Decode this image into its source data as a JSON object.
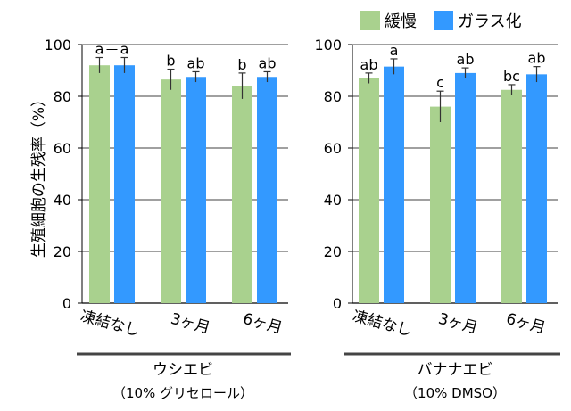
{
  "chart_data": {
    "type": "bar",
    "ylabel": "生殖細胞の生残率（%）",
    "ylim": [
      0,
      100
    ],
    "yticks": [
      0,
      20,
      40,
      60,
      80,
      100
    ],
    "grid": true,
    "legend": {
      "placement": "top-right",
      "entries": [
        {
          "name": "緩慢",
          "color": "#a9d18e"
        },
        {
          "name": "ガラス化",
          "color": "#3399ff"
        }
      ]
    },
    "categories": [
      "凍結なし",
      "3ヶ月",
      "6ヶ月"
    ],
    "panels": [
      {
        "label": "ウシエビ",
        "sublabel": "（10% グリセロール）",
        "series": [
          {
            "name": "緩慢",
            "values": [
              92,
              86.5,
              84
            ],
            "errors": [
              3,
              4,
              5
            ],
            "letters": [
              "a",
              "b",
              "b"
            ]
          },
          {
            "name": "ガラス化",
            "values": [
              92,
              87.5,
              87.5
            ],
            "errors": [
              3,
              2,
              2
            ],
            "letters": [
              "a",
              "ab",
              "ab"
            ]
          }
        ],
        "annotation": "a—a"
      },
      {
        "label": "バナナエビ",
        "sublabel": "（10% DMSO）",
        "series": [
          {
            "name": "緩慢",
            "values": [
              87,
              76,
              82.5
            ],
            "errors": [
              2,
              6,
              2
            ],
            "letters": [
              "ab",
              "c",
              "bc"
            ]
          },
          {
            "name": "ガラス化",
            "values": [
              91.5,
              89,
              88.5
            ],
            "errors": [
              3,
              2,
              3
            ],
            "letters": [
              "a",
              "ab",
              "ab"
            ]
          }
        ]
      }
    ]
  }
}
